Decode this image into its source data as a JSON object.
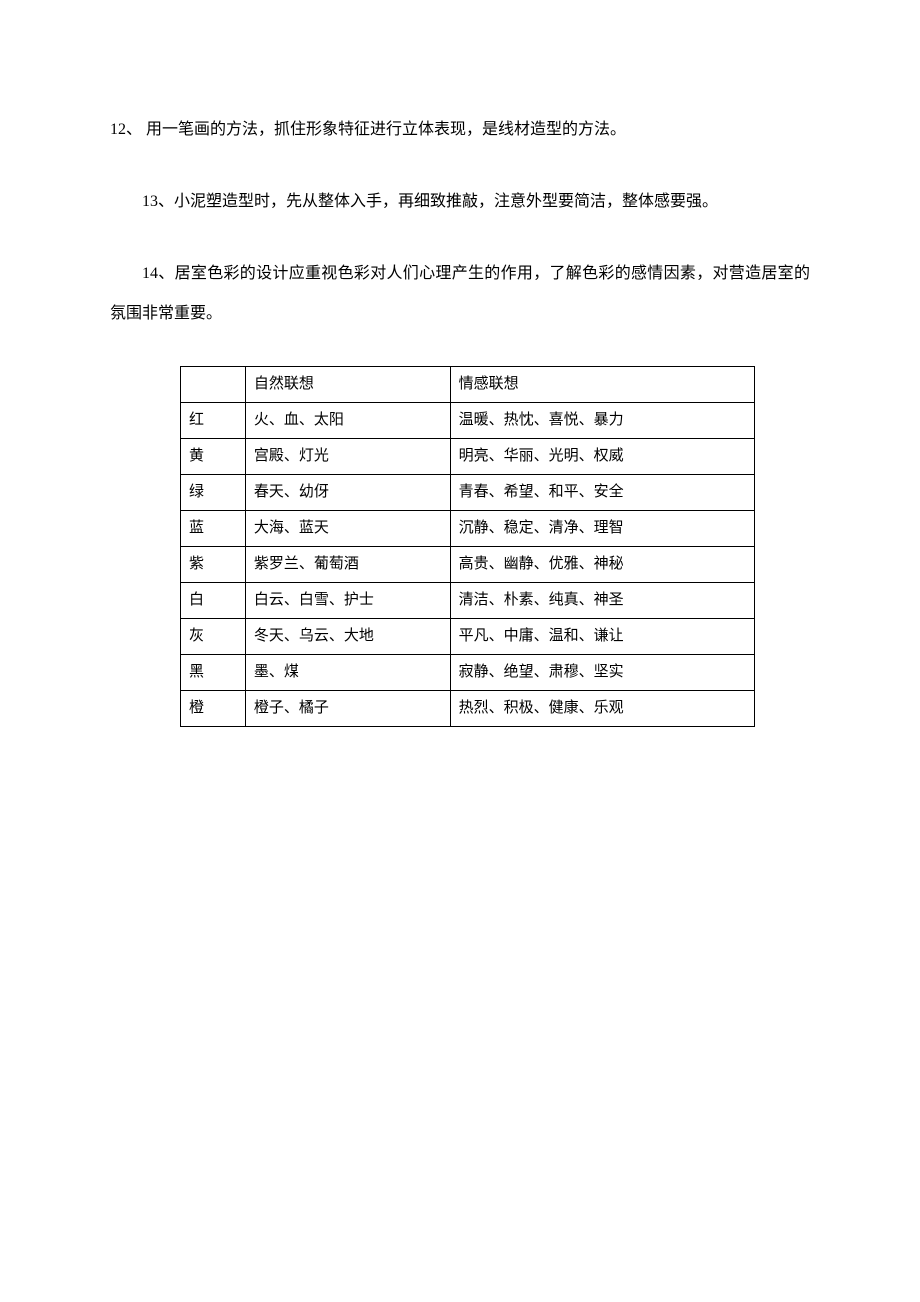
{
  "paragraphs": {
    "p12": "12、 用一笔画的方法，抓住形象特征进行立体表现，是线材造型的方法。",
    "p13": "13、小泥塑造型时，先从整体入手，再细致推敲，注意外型要简洁，整体感要强。",
    "p14": "14、居室色彩的设计应重视色彩对人们心理产生的作用，了解色彩的感情因素，对营造居室的氛围非常重要。"
  },
  "table": {
    "header": {
      "color": "",
      "nature": "自然联想",
      "emotion": "情感联想"
    },
    "rows": [
      {
        "color": "红",
        "nature": "火、血、太阳",
        "emotion": "温暖、热忱、喜悦、暴力"
      },
      {
        "color": "黄",
        "nature": "宫殿、灯光",
        "emotion": "明亮、华丽、光明、权威"
      },
      {
        "color": "绿",
        "nature": "春天、幼伢",
        "emotion": "青春、希望、和平、安全"
      },
      {
        "color": "蓝",
        "nature": "大海、蓝天",
        "emotion": "沉静、稳定、清净、理智"
      },
      {
        "color": "紫",
        "nature": "紫罗兰、葡萄酒",
        "emotion": "高贵、幽静、优雅、神秘"
      },
      {
        "color": "白",
        "nature": "白云、白雪、护士",
        "emotion": "清洁、朴素、纯真、神圣"
      },
      {
        "color": "灰",
        "nature": "冬天、乌云、大地",
        "emotion": "平凡、中庸、温和、谦让"
      },
      {
        "color": "黑",
        "nature": "墨、煤",
        "emotion": "寂静、绝望、肃穆、坚实"
      },
      {
        "color": "橙",
        "nature": "橙子、橘子",
        "emotion": "热烈、积极、健康、乐观"
      }
    ]
  }
}
